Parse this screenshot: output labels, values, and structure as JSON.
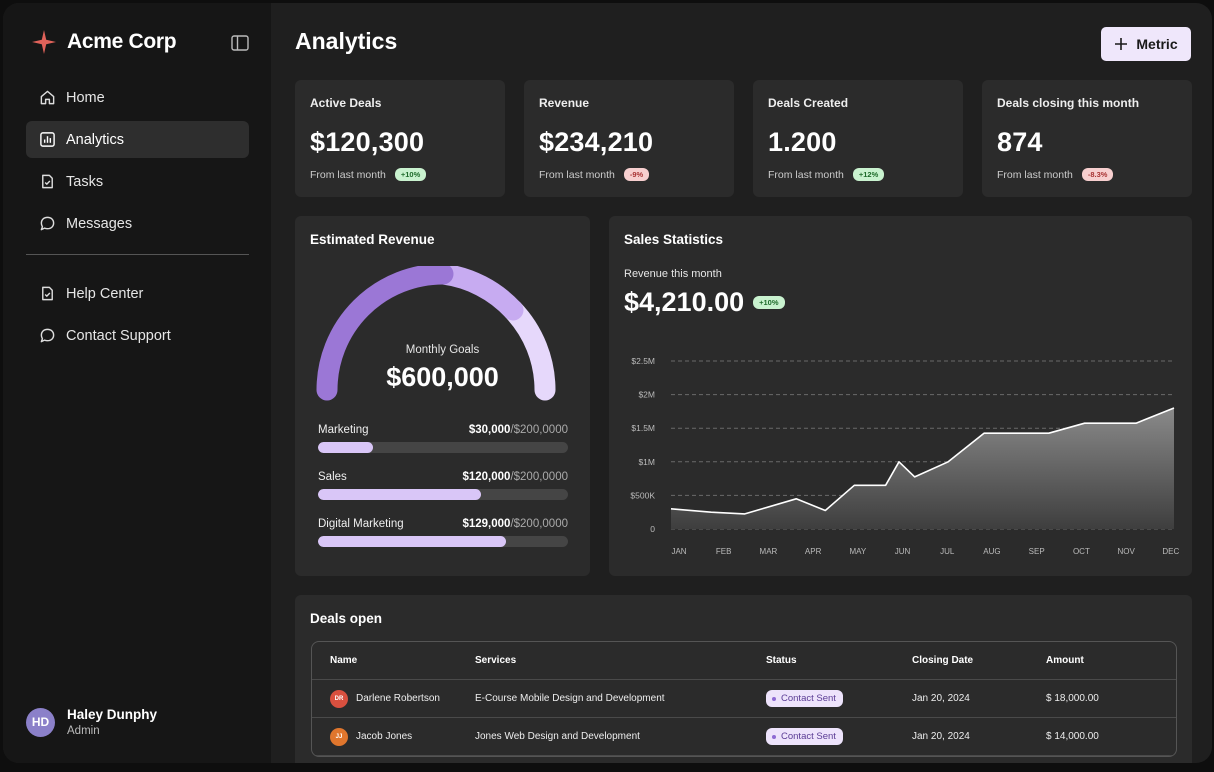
{
  "brand": {
    "name": "Acme Corp"
  },
  "nav": {
    "items": [
      {
        "label": "Home",
        "icon": "home-icon"
      },
      {
        "label": "Analytics",
        "icon": "chart-icon",
        "active": true
      },
      {
        "label": "Tasks",
        "icon": "clipboard-check-icon"
      },
      {
        "label": "Messages",
        "icon": "chat-bubble-icon"
      }
    ],
    "secondary": [
      {
        "label": "Help Center",
        "icon": "clipboard-check-icon"
      },
      {
        "label": "Contact Support",
        "icon": "chat-bubble-icon"
      }
    ]
  },
  "user": {
    "initials": "HD",
    "name": "Haley Dunphy",
    "role": "Admin"
  },
  "header": {
    "title": "Analytics",
    "metric_button": "Metric"
  },
  "cards": [
    {
      "label": "Active Deals",
      "value": "$120,300",
      "foot": "From last month",
      "delta": "+10%",
      "trend": "up"
    },
    {
      "label": "Revenue",
      "value": "$234,210",
      "foot": "From last month",
      "delta": "-9%",
      "trend": "down"
    },
    {
      "label": "Deals Created",
      "value": "1.200",
      "foot": "From last month",
      "delta": "+12%",
      "trend": "up"
    },
    {
      "label": "Deals closing this month",
      "value": "874",
      "foot": "From last month",
      "delta": "-8.3%",
      "trend": "down"
    }
  ],
  "estimated_revenue": {
    "title": "Estimated Revenue",
    "gauge_label": "Monthly Goals",
    "gauge_value": "$600,000",
    "goals": [
      {
        "label": "Marketing",
        "amount": "$30,000",
        "target": "/$200,0000",
        "fraction": 0.22
      },
      {
        "label": "Sales",
        "amount": "$120,000",
        "target": "/$200,0000",
        "fraction": 0.65
      },
      {
        "label": "Digital Marketing",
        "amount": "$129,000",
        "target": "/$200,0000",
        "fraction": 0.75
      }
    ]
  },
  "sales_statistics": {
    "title": "Sales Statistics",
    "subtitle": "Revenue this month",
    "value": "$4,210.00",
    "delta": "+10%"
  },
  "chart_data": {
    "type": "area",
    "categories": [
      "JAN",
      "FEB",
      "MAR",
      "APR",
      "MAY",
      "JUN",
      "JUL",
      "AUG",
      "SEP",
      "OCT",
      "NOV",
      "DEC"
    ],
    "x": [
      1,
      1.9,
      2.65,
      3.8,
      4.45,
      5.1,
      5.8,
      6.1,
      6.45,
      7.2,
      8.0,
      8.65,
      9.45,
      10.25,
      10.85,
      11.4,
      12.25
    ],
    "values": [
      300000,
      250000,
      225000,
      450000,
      275000,
      650000,
      650000,
      1000000,
      775000,
      1000000,
      1425000,
      1425000,
      1425000,
      1575000,
      1575000,
      1575000,
      1800000
    ],
    "yticks": [
      "0",
      "$500K",
      "$1M",
      "$1.5M",
      "$2M",
      "$2.5M"
    ],
    "ylim": [
      0,
      2500000
    ],
    "grid": true,
    "line_color": "#ffffff",
    "fill_color": "#8a8a8a"
  },
  "deals": {
    "title": "Deals open",
    "columns": [
      "Name",
      "Services",
      "Status",
      "Closing Date",
      "Amount"
    ],
    "rows": [
      {
        "initials": "DR",
        "avatar_color": "#d9503f",
        "name": "Darlene Robertson",
        "service": "E-Course Mobile Design and Development",
        "status": "Contact Sent",
        "date": "Jan 20, 2024",
        "amount": "$ 18,000.00"
      },
      {
        "initials": "JJ",
        "avatar_color": "#e0762d",
        "name": "Jacob Jones",
        "service": "Jones Web Design and Development",
        "status": "Contact Sent",
        "date": "Jan 20, 2024",
        "amount": "$ 14,000.00"
      }
    ]
  },
  "colors": {
    "accent": "#efe7fb",
    "brand_star": "#e0625a",
    "gauge_dark": "#9b77d6",
    "gauge_mid": "#c7abf1",
    "gauge_light": "#e6d8fb"
  }
}
